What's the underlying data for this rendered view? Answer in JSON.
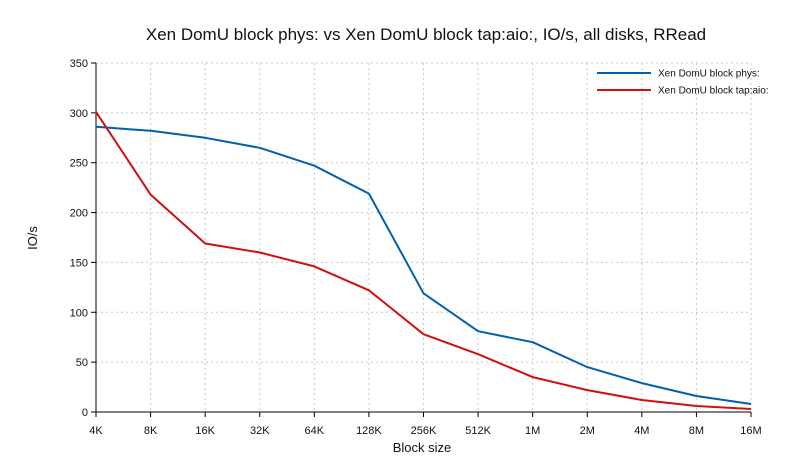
{
  "chart_data": {
    "type": "line",
    "title": "Xen DomU block phys: vs Xen DomU block tap:aio:, IO/s, all disks, RRead",
    "xlabel": "Block size",
    "ylabel": "IO/s",
    "categories": [
      "4K",
      "8K",
      "16K",
      "32K",
      "64K",
      "128K",
      "256K",
      "512K",
      "1M",
      "2M",
      "4M",
      "8M",
      "16M"
    ],
    "ylim": [
      0,
      350
    ],
    "yticks": [
      0,
      50,
      100,
      150,
      200,
      250,
      300,
      350
    ],
    "grid": true,
    "legend_position": "top-right",
    "series": [
      {
        "name": "Xen DomU block phys:",
        "color": "#0060b0",
        "values": [
          286,
          282,
          275,
          265,
          247,
          219,
          119,
          81,
          70,
          45,
          29,
          16,
          8
        ]
      },
      {
        "name": "Xen DomU block tap:aio:",
        "color": "#d01010",
        "values": [
          301,
          218,
          169,
          160,
          146,
          122,
          78,
          58,
          35,
          22,
          12,
          6,
          3
        ]
      }
    ]
  }
}
